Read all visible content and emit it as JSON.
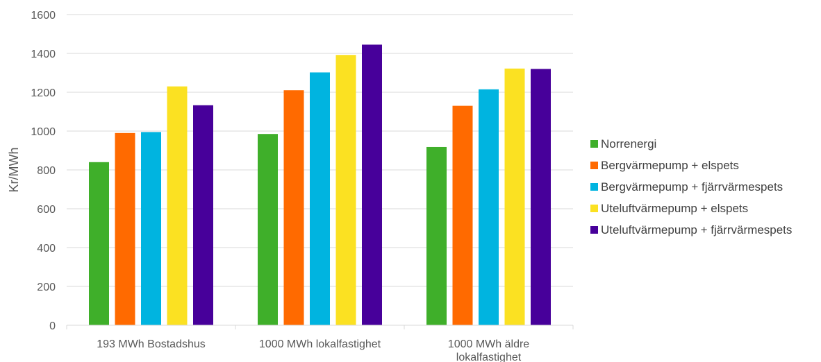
{
  "chart_data": {
    "type": "bar",
    "ylabel": "Kr/MWh",
    "xlabel": "",
    "ylim": [
      0,
      1600
    ],
    "yticks": [
      0,
      200,
      400,
      600,
      800,
      1000,
      1200,
      1400,
      1600
    ],
    "grid": true,
    "legend_position": "right",
    "categories": [
      [
        "193 MWh Bostadshus"
      ],
      [
        "1000 MWh lokalfastighet"
      ],
      [
        "1000 MWh äldre",
        "lokalfastighet"
      ]
    ],
    "series": [
      {
        "name": "Norrenergi",
        "color": "#3faf2a",
        "values": [
          840,
          985,
          918
        ]
      },
      {
        "name": "Bergvärmepump + elspets",
        "color": "#ff6a00",
        "values": [
          990,
          1210,
          1130
        ]
      },
      {
        "name": "Bergvärmepump + fjärrvärmespets",
        "color": "#00b4e0",
        "values": [
          995,
          1302,
          1215
        ]
      },
      {
        "name": "Uteluftvärmepump + elspets",
        "color": "#fbe122",
        "values": [
          1230,
          1392,
          1322
        ]
      },
      {
        "name": "Uteluftvärmepump + fjärrvärmespets",
        "color": "#47009a",
        "values": [
          1133,
          1445,
          1320
        ]
      }
    ]
  }
}
